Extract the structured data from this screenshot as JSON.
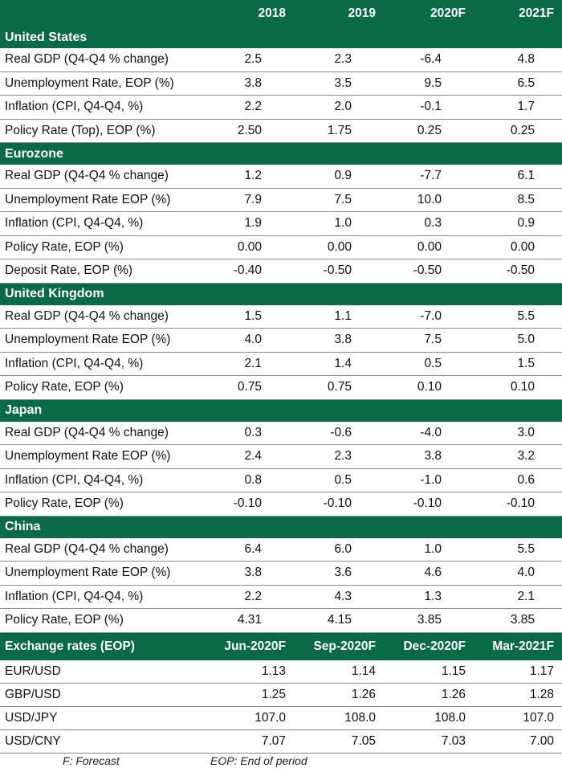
{
  "header": {
    "columns": [
      "",
      "2018",
      "2019",
      "2020F",
      "2021F"
    ]
  },
  "sections": [
    {
      "title": "United States",
      "rows": [
        {
          "label": "Real GDP (Q4-Q4 % change)",
          "values": [
            "2.5",
            "2.3",
            "-6.4",
            "4.8"
          ]
        },
        {
          "label": "Unemployment Rate, EOP (%)",
          "values": [
            "3.8",
            "3.5",
            "9.5",
            "6.5"
          ]
        },
        {
          "label": "Inflation (CPI, Q4-Q4, %)",
          "values": [
            "2.2",
            "2.0",
            "-0.1",
            "1.7"
          ]
        },
        {
          "label": "Policy Rate (Top), EOP (%)",
          "values": [
            "2.50",
            "1.75",
            "0.25",
            "0.25"
          ]
        }
      ]
    },
    {
      "title": "Eurozone",
      "rows": [
        {
          "label": "Real GDP (Q4-Q4 % change)",
          "values": [
            "1.2",
            "0.9",
            "-7.7",
            "6.1"
          ]
        },
        {
          "label": "Unemployment Rate EOP (%)",
          "values": [
            "7.9",
            "7.5",
            "10.0",
            "8.5"
          ]
        },
        {
          "label": "Inflation (CPI, Q4-Q4, %)",
          "values": [
            "1.9",
            "1.0",
            "0.3",
            "0.9"
          ]
        },
        {
          "label": "Policy Rate, EOP (%)",
          "values": [
            "0.00",
            "0.00",
            "0.00",
            "0.00"
          ]
        },
        {
          "label": "Deposit Rate, EOP (%)",
          "values": [
            "-0.40",
            "-0.50",
            "-0.50",
            "-0.50"
          ]
        }
      ]
    },
    {
      "title": "United Kingdom",
      "rows": [
        {
          "label": "Real GDP (Q4-Q4 % change)",
          "values": [
            "1.5",
            "1.1",
            "-7.0",
            "5.5"
          ]
        },
        {
          "label": "Unemployment Rate EOP (%)",
          "values": [
            "4.0",
            "3.8",
            "7.5",
            "5.0"
          ]
        },
        {
          "label": "Inflation (CPI, Q4-Q4, %)",
          "values": [
            "2.1",
            "1.4",
            "0.5",
            "1.5"
          ]
        },
        {
          "label": "Policy Rate, EOP (%)",
          "values": [
            "0.75",
            "0.75",
            "0.10",
            "0.10"
          ]
        }
      ]
    },
    {
      "title": "Japan",
      "rows": [
        {
          "label": "Real GDP (Q4-Q4 % change)",
          "values": [
            "0.3",
            "-0.6",
            "-4.0",
            "3.0"
          ]
        },
        {
          "label": "Unemployment Rate EOP (%)",
          "values": [
            "2.4",
            "2.3",
            "3.8",
            "3.2"
          ]
        },
        {
          "label": "Inflation (CPI, Q4-Q4, %)",
          "values": [
            "0.8",
            "0.5",
            "-1.0",
            "0.6"
          ]
        },
        {
          "label": "Policy Rate, EOP (%)",
          "values": [
            "-0.10",
            "-0.10",
            "-0.10",
            "-0.10"
          ]
        }
      ]
    },
    {
      "title": "China",
      "rows": [
        {
          "label": "Real GDP (Q4-Q4 % change)",
          "values": [
            "6.4",
            "6.0",
            "1.0",
            "5.5"
          ]
        },
        {
          "label": "Unemployment Rate EOP (%)",
          "values": [
            "3.8",
            "3.6",
            "4.6",
            "4.0"
          ]
        },
        {
          "label": "Inflation (CPI, Q4-Q4, %)",
          "values": [
            "2.2",
            "4.3",
            "1.3",
            "2.1"
          ]
        },
        {
          "label": "Policy Rate, EOP (%)",
          "values": [
            "4.31",
            "4.15",
            "3.85",
            "3.85"
          ]
        }
      ]
    }
  ],
  "exchange": {
    "columns": [
      "Exchange rates (EOP)",
      "Jun-2020F",
      "Sep-2020F",
      "Dec-2020F",
      "Mar-2021F"
    ],
    "rows": [
      {
        "label": "EUR/USD",
        "values": [
          "1.13",
          "1.14",
          "1.15",
          "1.17"
        ]
      },
      {
        "label": "GBP/USD",
        "values": [
          "1.25",
          "1.26",
          "1.26",
          "1.28"
        ]
      },
      {
        "label": "USD/JPY",
        "values": [
          "107.0",
          "108.0",
          "108.0",
          "107.0"
        ]
      },
      {
        "label": "USD/CNY",
        "values": [
          "7.07",
          "7.05",
          "7.03",
          "7.00"
        ]
      }
    ]
  },
  "footnotes": {
    "forecast": "F: Forecast",
    "eop": "EOP: End of period"
  }
}
